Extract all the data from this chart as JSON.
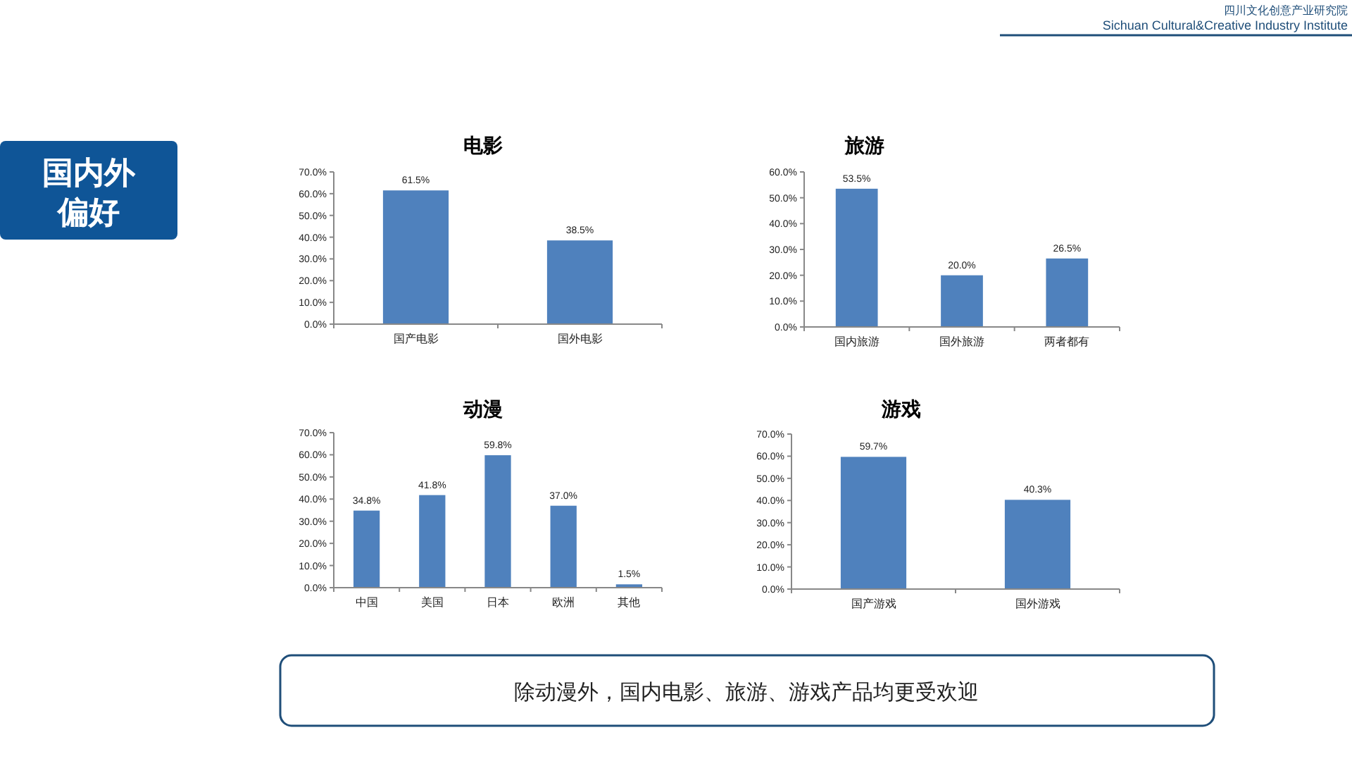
{
  "chart_data": [
    {
      "type": "bar",
      "title": "电影",
      "categories": [
        "国产电影",
        "国外电影"
      ],
      "series": [
        {
          "color": "#4f81bd",
          "values": [
            61.5,
            38.5
          ],
          "value_labels": [
            "61.5%",
            "38.5%"
          ]
        }
      ],
      "ylim": [
        0,
        70
      ],
      "yticks": [
        {
          "value": 0,
          "label": "0.0%"
        },
        {
          "value": 10,
          "label": "10.0%"
        },
        {
          "value": 20,
          "label": "20.0%"
        },
        {
          "value": 30,
          "label": "30.0%"
        },
        {
          "value": 40,
          "label": "40.0%"
        },
        {
          "value": 50,
          "label": "50.0%"
        },
        {
          "value": 60,
          "label": "60.0%"
        },
        {
          "value": 70,
          "label": "70.0%"
        }
      ]
    },
    {
      "type": "bar",
      "title": "旅游",
      "categories": [
        "国内旅游",
        "国外旅游",
        "两者都有"
      ],
      "series": [
        {
          "color": "#4f81bd",
          "values": [
            53.5,
            20.0,
            26.5
          ],
          "value_labels": [
            "53.5%",
            "20.0%",
            "26.5%"
          ]
        }
      ],
      "ylim": [
        0,
        60
      ],
      "yticks": [
        {
          "value": 0,
          "label": "0.0%"
        },
        {
          "value": 10,
          "label": "10.0%"
        },
        {
          "value": 20,
          "label": "20.0%"
        },
        {
          "value": 30,
          "label": "30.0%"
        },
        {
          "value": 40,
          "label": "40.0%"
        },
        {
          "value": 50,
          "label": "50.0%"
        },
        {
          "value": 60,
          "label": "60.0%"
        }
      ]
    },
    {
      "type": "bar",
      "title": "动漫",
      "categories": [
        "中国",
        "美国",
        "日本",
        "欧洲",
        "其他"
      ],
      "series": [
        {
          "color": "#4f81bd",
          "values": [
            34.8,
            41.8,
            59.8,
            37.0,
            1.5
          ],
          "value_labels": [
            "34.8%",
            "41.8%",
            "59.8%",
            "37.0%",
            "1.5%"
          ]
        }
      ],
      "ylim": [
        0,
        70
      ],
      "yticks": [
        {
          "value": 0,
          "label": "0.0%"
        },
        {
          "value": 10,
          "label": "10.0%"
        },
        {
          "value": 20,
          "label": "20.0%"
        },
        {
          "value": 30,
          "label": "30.0%"
        },
        {
          "value": 40,
          "label": "40.0%"
        },
        {
          "value": 50,
          "label": "50.0%"
        },
        {
          "value": 60,
          "label": "60.0%"
        },
        {
          "value": 70,
          "label": "70.0%"
        }
      ]
    },
    {
      "type": "bar",
      "title": "游戏",
      "categories": [
        "国产游戏",
        "国外游戏"
      ],
      "series": [
        {
          "color": "#4f81bd",
          "values": [
            59.7,
            40.3
          ],
          "value_labels": [
            "59.7%",
            "40.3%"
          ]
        }
      ],
      "ylim": [
        0,
        70
      ],
      "yticks": [
        {
          "value": 0,
          "label": "0.0%"
        },
        {
          "value": 10,
          "label": "10.0%"
        },
        {
          "value": 20,
          "label": "20.0%"
        },
        {
          "value": 30,
          "label": "30.0%"
        },
        {
          "value": 40,
          "label": "40.0%"
        },
        {
          "value": 50,
          "label": "50.0%"
        },
        {
          "value": 60,
          "label": "60.0%"
        },
        {
          "value": 70,
          "label": "70.0%"
        }
      ]
    },
    {
      "type": "other",
      "title": "国内外偏好",
      "annotations": [
        "除动漫外，国内电影、旅游、游戏产品均更受欢迎",
        "四川文化创意产业研究院",
        "Sichuan Cultural&Creative Industry Institute"
      ]
    }
  ]
}
